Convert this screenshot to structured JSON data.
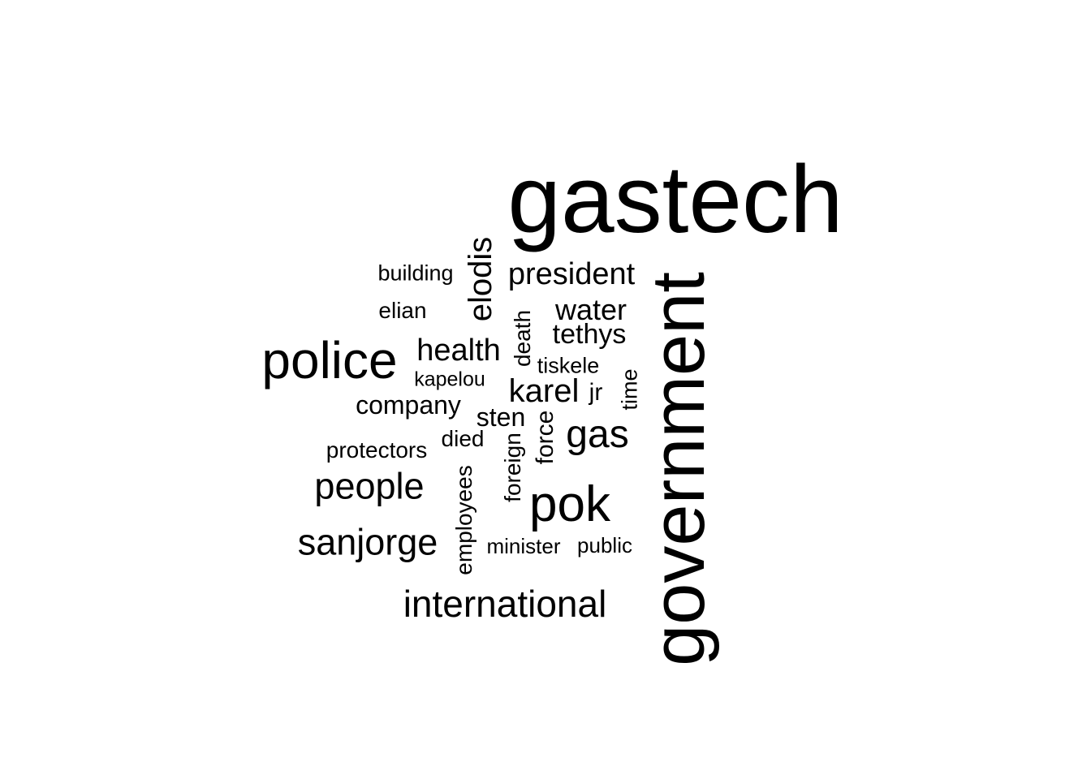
{
  "colors": {
    "background": "#ffffff",
    "text": "#000000"
  },
  "words": [
    {
      "text": "gastech",
      "rotated": false
    },
    {
      "text": "government",
      "rotated": true
    },
    {
      "text": "police",
      "rotated": false
    },
    {
      "text": "pok",
      "rotated": false
    },
    {
      "text": "international",
      "rotated": false
    },
    {
      "text": "sanjorge",
      "rotated": false
    },
    {
      "text": "people",
      "rotated": false
    },
    {
      "text": "president",
      "rotated": false
    },
    {
      "text": "elodis",
      "rotated": true
    },
    {
      "text": "gas",
      "rotated": false
    },
    {
      "text": "karel",
      "rotated": false
    },
    {
      "text": "health",
      "rotated": false
    },
    {
      "text": "water",
      "rotated": false
    },
    {
      "text": "tethys",
      "rotated": false
    },
    {
      "text": "company",
      "rotated": false
    },
    {
      "text": "employees",
      "rotated": true
    },
    {
      "text": "foreign",
      "rotated": true
    },
    {
      "text": "force",
      "rotated": true
    },
    {
      "text": "death",
      "rotated": true
    },
    {
      "text": "sten",
      "rotated": false
    },
    {
      "text": "protectors",
      "rotated": false
    },
    {
      "text": "building",
      "rotated": false
    },
    {
      "text": "elian",
      "rotated": false
    },
    {
      "text": "died",
      "rotated": false
    },
    {
      "text": "tiskele",
      "rotated": false
    },
    {
      "text": "kapelou",
      "rotated": false
    },
    {
      "text": "jr",
      "rotated": false
    },
    {
      "text": "time",
      "rotated": true
    },
    {
      "text": "minister",
      "rotated": false
    },
    {
      "text": "public",
      "rotated": false
    }
  ]
}
